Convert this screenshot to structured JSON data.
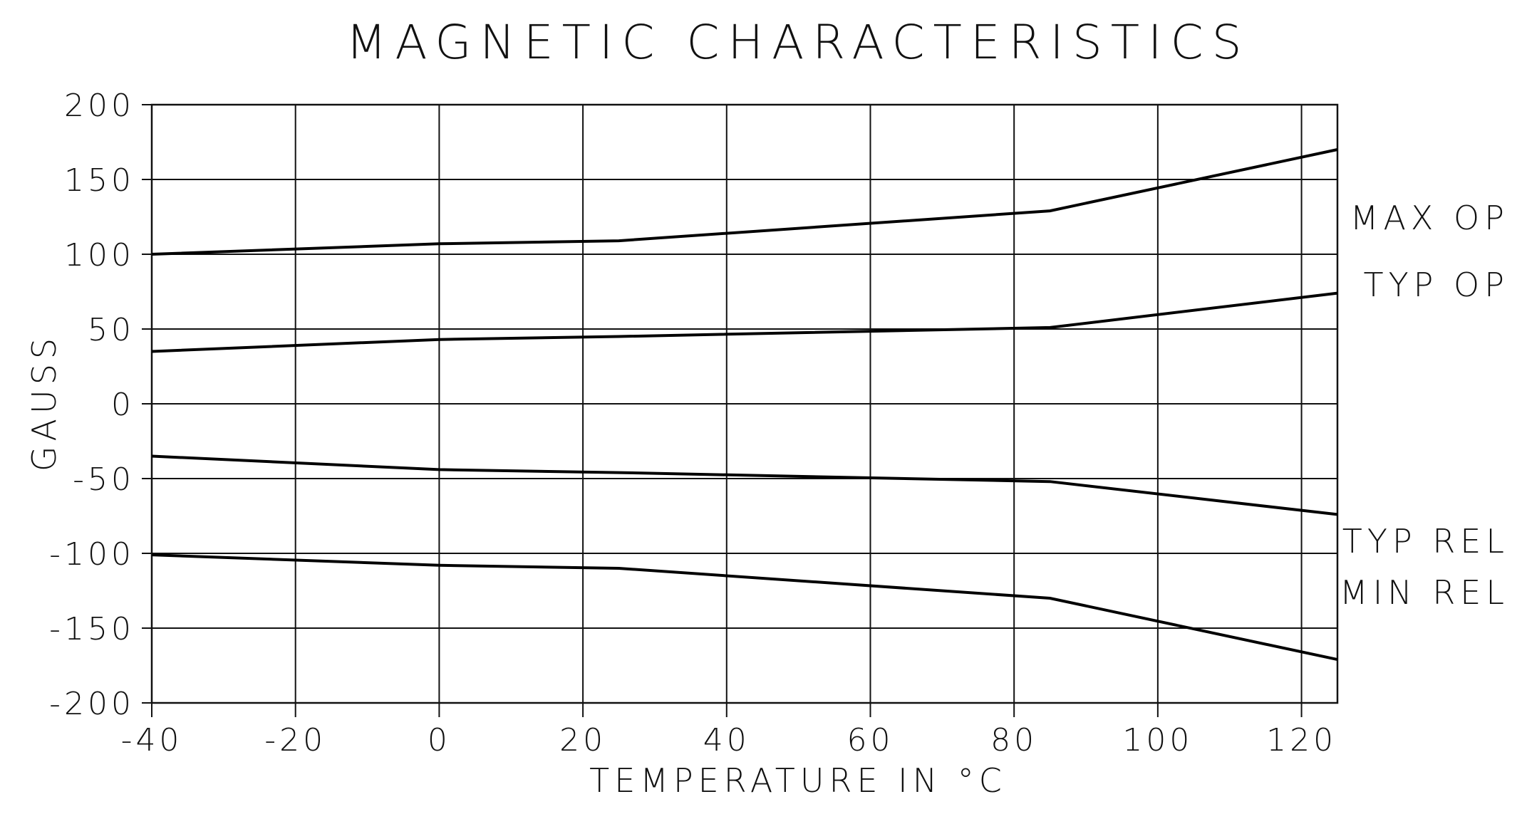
{
  "chart_data": {
    "type": "line",
    "title": "MAGNETIC CHARACTERISTICS",
    "xlabel": "TEMPERATURE IN °C",
    "ylabel": "GAUSS",
    "xlim": [
      -40,
      125
    ],
    "ylim": [
      -200,
      200
    ],
    "x_ticks": [
      -40,
      -20,
      0,
      20,
      40,
      60,
      80,
      100,
      120
    ],
    "x_tick_labels": [
      "-40",
      "-20",
      "0",
      "20",
      "40",
      "60",
      "80",
      "100",
      "120"
    ],
    "y_ticks": [
      200,
      150,
      100,
      50,
      0,
      -50,
      -100,
      -150,
      -200
    ],
    "y_tick_labels": [
      "200",
      "150",
      "100",
      "50",
      "0",
      "-50",
      "-100",
      "-150",
      "-200"
    ],
    "grid": true,
    "legend": "labels-right",
    "series": [
      {
        "name": "MAX OP",
        "x": [
          -40,
          0,
          25,
          85,
          125
        ],
        "y": [
          100,
          107,
          109,
          129,
          170
        ]
      },
      {
        "name": "TYP OP",
        "x": [
          -40,
          0,
          25,
          85,
          125
        ],
        "y": [
          35,
          43,
          45,
          51,
          74
        ]
      },
      {
        "name": "TYP REL",
        "x": [
          -40,
          0,
          25,
          85,
          125
        ],
        "y": [
          -35,
          -44,
          -46,
          -52,
          -74
        ]
      },
      {
        "name": "MIN REL",
        "x": [
          -40,
          0,
          25,
          85,
          125
        ],
        "y": [
          -101,
          -108,
          -110,
          -130,
          -171
        ]
      }
    ]
  }
}
